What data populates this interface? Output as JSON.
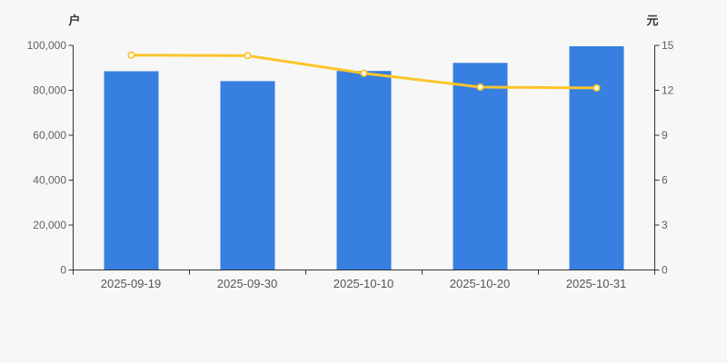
{
  "page": {
    "background": "#f7f7f7"
  },
  "chart_data": {
    "type": "bar",
    "subtype": "bar+line dual axis",
    "title": "",
    "legend": "none",
    "grid": "off",
    "categories": [
      "2025-09-19",
      "2025-09-30",
      "2025-10-10",
      "2025-10-20",
      "2025-10-31"
    ],
    "series": [
      {
        "name": "households-bar-series",
        "type": "bar",
        "yaxis": "left",
        "values": [
          88500,
          84100,
          88600,
          92200,
          99600
        ],
        "color": "#377fe0"
      },
      {
        "name": "price-line-series",
        "type": "line",
        "yaxis": "right",
        "values": [
          14.35,
          14.31,
          13.14,
          12.21,
          12.16
        ],
        "color": "#fcc52b",
        "marker": "empty-circle",
        "marker_fill": "#ffffff"
      }
    ],
    "left_axis": {
      "title": "户",
      "min": 0,
      "max": 100000,
      "tick_labels": [
        "100,000",
        "80,000",
        "60,000",
        "40,000",
        "20,000",
        "0"
      ]
    },
    "right_axis": {
      "title": "元",
      "min": 0,
      "max": 15,
      "tick_labels": [
        "15",
        "12",
        "9",
        "6",
        "3",
        "0"
      ]
    },
    "x_axis": {
      "tick_labels": [
        "2025-09-19",
        "2025-09-30",
        "2025-10-10",
        "2025-10-20",
        "2025-10-31"
      ]
    },
    "colors": {
      "axis_line": "#333333",
      "tick_text": "#616161",
      "x_tick_text": "#555555",
      "background": "#f7f7f7"
    }
  }
}
